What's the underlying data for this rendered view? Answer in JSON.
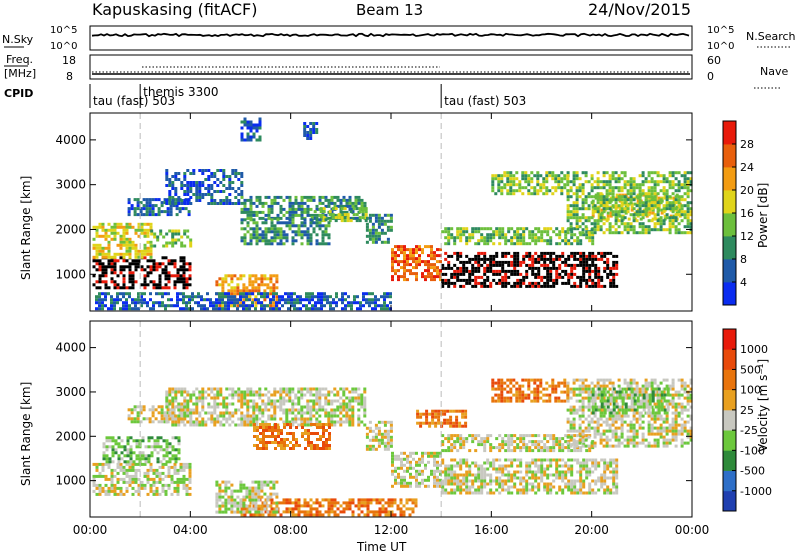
{
  "header": {
    "station": "Kapuskasing (fitACF)",
    "beam": "Beam 13",
    "date": "24/Nov/2015"
  },
  "summary_panels": {
    "nsky": {
      "label": "N.Sky",
      "ticks": [
        "10^5",
        "10^0"
      ]
    },
    "nsearch": {
      "label": "N.Search",
      "ticks": [
        "10^5",
        "10^0"
      ]
    },
    "freq": {
      "label_top": "Freq.",
      "label_bottom": "[MHz]",
      "ticks": [
        "18",
        "8"
      ]
    },
    "nave": {
      "label": "Nave",
      "ticks": [
        "60",
        "0"
      ]
    },
    "cpid": {
      "label": "CPID",
      "entries": [
        {
          "text": "tau (fast) 503",
          "start_hour": 0
        },
        {
          "text": "themis 3300",
          "start_hour": 2
        },
        {
          "text": "tau (fast) 503",
          "start_hour": 14
        }
      ]
    }
  },
  "colors": {
    "power": [
      "#0a2cf0",
      "#1f5aa8",
      "#2e8a5e",
      "#6cbf3c",
      "#e0d41a",
      "#f39c12",
      "#e85f0c",
      "#e81a0a"
    ],
    "velocity": [
      "#1f3fb0",
      "#2e6fc8",
      "#2e8a3a",
      "#6cc83c",
      "#c8c8c0",
      "#e8a020",
      "#e8740c",
      "#e84a0a",
      "#e81a0a"
    ]
  },
  "chart_data": [
    {
      "type": "heatmap",
      "name": "power",
      "xlabel": "Time UT",
      "ylabel": "Slant Range [km]",
      "xlim": [
        0,
        24
      ],
      "ylim": [
        180,
        4600
      ],
      "x_ticks": [
        "00:00",
        "04:00",
        "08:00",
        "12:00",
        "16:00",
        "20:00",
        "00:00"
      ],
      "y_ticks": [
        1000,
        2000,
        3000,
        4000
      ],
      "colorbar": {
        "label": "Power [dB]",
        "ticks": [
          "28",
          "24",
          "20",
          "16",
          "12",
          "8",
          "4"
        ]
      },
      "regions": [
        {
          "t": [
            0.1,
            4.0
          ],
          "r": [
            700,
            1400
          ],
          "level": 6.5
        },
        {
          "t": [
            0.1,
            2.4
          ],
          "r": [
            1400,
            2150
          ],
          "level": 4
        },
        {
          "t": [
            2.4,
            4.0
          ],
          "r": [
            1600,
            2000
          ],
          "level": 3
        },
        {
          "t": [
            1.5,
            4.0
          ],
          "r": [
            2300,
            2700
          ],
          "level": 1
        },
        {
          "t": [
            3.0,
            6.0
          ],
          "r": [
            2600,
            3350
          ],
          "level": 1
        },
        {
          "t": [
            6.0,
            11.0
          ],
          "r": [
            2250,
            2750
          ],
          "level": 2
        },
        {
          "t": [
            8.8,
            11.0
          ],
          "r": [
            2200,
            2500
          ],
          "level": 3
        },
        {
          "t": [
            11.0,
            12.0
          ],
          "r": [
            1700,
            2350
          ],
          "level": 2
        },
        {
          "t": [
            6.0,
            9.5
          ],
          "r": [
            1650,
            2250
          ],
          "level": 2
        },
        {
          "t": [
            12.0,
            14.0
          ],
          "r": [
            900,
            1650
          ],
          "level": 6
        },
        {
          "t": [
            14.0,
            21.0
          ],
          "r": [
            700,
            1500
          ],
          "level": 6.5
        },
        {
          "t": [
            14.0,
            20.0
          ],
          "r": [
            1700,
            2050
          ],
          "level": 3
        },
        {
          "t": [
            20.0,
            23.5
          ],
          "r": [
            2200,
            2800
          ],
          "level": 4
        },
        {
          "t": [
            19.0,
            24.0
          ],
          "r": [
            1900,
            3300
          ],
          "level": 3
        },
        {
          "t": [
            5.0,
            7.5
          ],
          "r": [
            300,
            1000
          ],
          "level": 5
        },
        {
          "t": [
            0.2,
            12.0
          ],
          "r": [
            250,
            600
          ],
          "level": 1
        },
        {
          "t": [
            6.0,
            6.8
          ],
          "r": [
            4000,
            4500
          ],
          "level": 1
        },
        {
          "t": [
            8.5,
            9.0
          ],
          "r": [
            4050,
            4400
          ],
          "level": 1
        },
        {
          "t": [
            16.0,
            19.0
          ],
          "r": [
            2800,
            3300
          ],
          "level": 3
        }
      ]
    },
    {
      "type": "heatmap",
      "name": "velocity",
      "xlabel": "Time UT",
      "ylabel": "Slant Range [km]",
      "xlim": [
        0,
        24
      ],
      "ylim": [
        180,
        4600
      ],
      "x_ticks": [
        "00:00",
        "04:00",
        "08:00",
        "12:00",
        "16:00",
        "20:00",
        "00:00"
      ],
      "y_ticks": [
        1000,
        2000,
        3000,
        4000
      ],
      "colorbar": {
        "label": "Velocity [m s⁻¹]",
        "ticks": [
          "1000",
          "500",
          "100",
          "25",
          "-25",
          "-100",
          "-500",
          "-1000"
        ]
      },
      "regions": [
        {
          "t": [
            0.1,
            4.0
          ],
          "r": [
            700,
            1400
          ],
          "level": 4
        },
        {
          "t": [
            0.5,
            3.5
          ],
          "r": [
            1400,
            2000
          ],
          "level": 3
        },
        {
          "t": [
            1.5,
            4.0
          ],
          "r": [
            2300,
            2700
          ],
          "level": 4
        },
        {
          "t": [
            3.0,
            11.0
          ],
          "r": [
            2250,
            3100
          ],
          "level": 4
        },
        {
          "t": [
            6.5,
            9.5
          ],
          "r": [
            1700,
            2300
          ],
          "level": 6
        },
        {
          "t": [
            11.0,
            12.0
          ],
          "r": [
            1700,
            2350
          ],
          "level": 4
        },
        {
          "t": [
            12.0,
            14.0
          ],
          "r": [
            900,
            1650
          ],
          "level": 4
        },
        {
          "t": [
            14.0,
            21.0
          ],
          "r": [
            700,
            1500
          ],
          "level": 4
        },
        {
          "t": [
            14.0,
            20.0
          ],
          "r": [
            1700,
            2050
          ],
          "level": 4
        },
        {
          "t": [
            13.0,
            15.0
          ],
          "r": [
            2200,
            2600
          ],
          "level": 6
        },
        {
          "t": [
            19.0,
            24.0
          ],
          "r": [
            1800,
            3300
          ],
          "level": 4
        },
        {
          "t": [
            20.0,
            23.0
          ],
          "r": [
            2500,
            3100
          ],
          "level": 3
        },
        {
          "t": [
            6.0,
            13.0
          ],
          "r": [
            250,
            600
          ],
          "level": 6
        },
        {
          "t": [
            5.0,
            7.5
          ],
          "r": [
            300,
            1000
          ],
          "level": 4
        },
        {
          "t": [
            16.0,
            19.0
          ],
          "r": [
            2800,
            3300
          ],
          "level": 6
        }
      ]
    }
  ]
}
